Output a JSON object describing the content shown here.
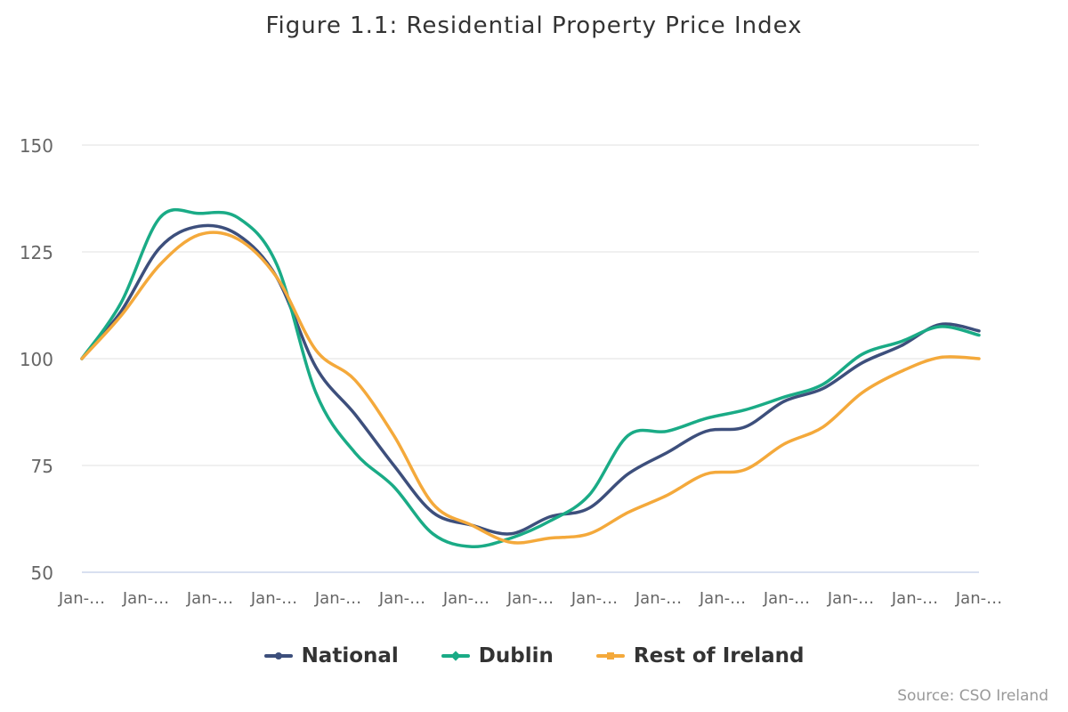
{
  "chart_data": {
    "type": "line",
    "title": "Figure 1.1: Residential Property Price Index",
    "source": "Source: CSO Ireland",
    "x_labels": [
      "Jan-…",
      "Jan-…",
      "Jan-…",
      "Jan-…",
      "Jan-…",
      "Jan-…",
      "Jan-…",
      "Jan-…",
      "Jan-…",
      "Jan-…",
      "Jan-…",
      "Jan-…",
      "Jan-…",
      "Jan-…",
      "Jan-…"
    ],
    "y_ticks": [
      50,
      75,
      100,
      125,
      150
    ],
    "ylim": [
      50,
      150
    ],
    "grid": true,
    "legend_position": "bottom",
    "series": [
      {
        "name": "National",
        "color": "#3d4f7c",
        "marker": "circle",
        "values": [
          100,
          111,
          126,
          131,
          129,
          119,
          98,
          87,
          75,
          64,
          61,
          59,
          63,
          65,
          73,
          78,
          83,
          84,
          90,
          93,
          99,
          103,
          108,
          106.5
        ]
      },
      {
        "name": "Dublin",
        "color": "#1aab86",
        "marker": "diamond",
        "values": [
          100,
          113,
          133,
          134,
          133,
          122,
          92,
          78,
          70,
          59,
          56,
          58,
          62,
          68,
          82,
          83,
          86,
          88,
          91,
          94,
          101,
          104,
          107.5,
          105.5
        ]
      },
      {
        "name": "Rest of Ireland",
        "color": "#f4a93b",
        "marker": "square",
        "values": [
          100,
          110,
          122,
          129,
          128,
          119,
          102,
          95,
          82,
          66,
          61,
          57,
          58,
          59,
          64,
          68,
          73,
          74,
          80,
          84,
          92,
          97,
          100.3,
          100
        ]
      }
    ]
  }
}
